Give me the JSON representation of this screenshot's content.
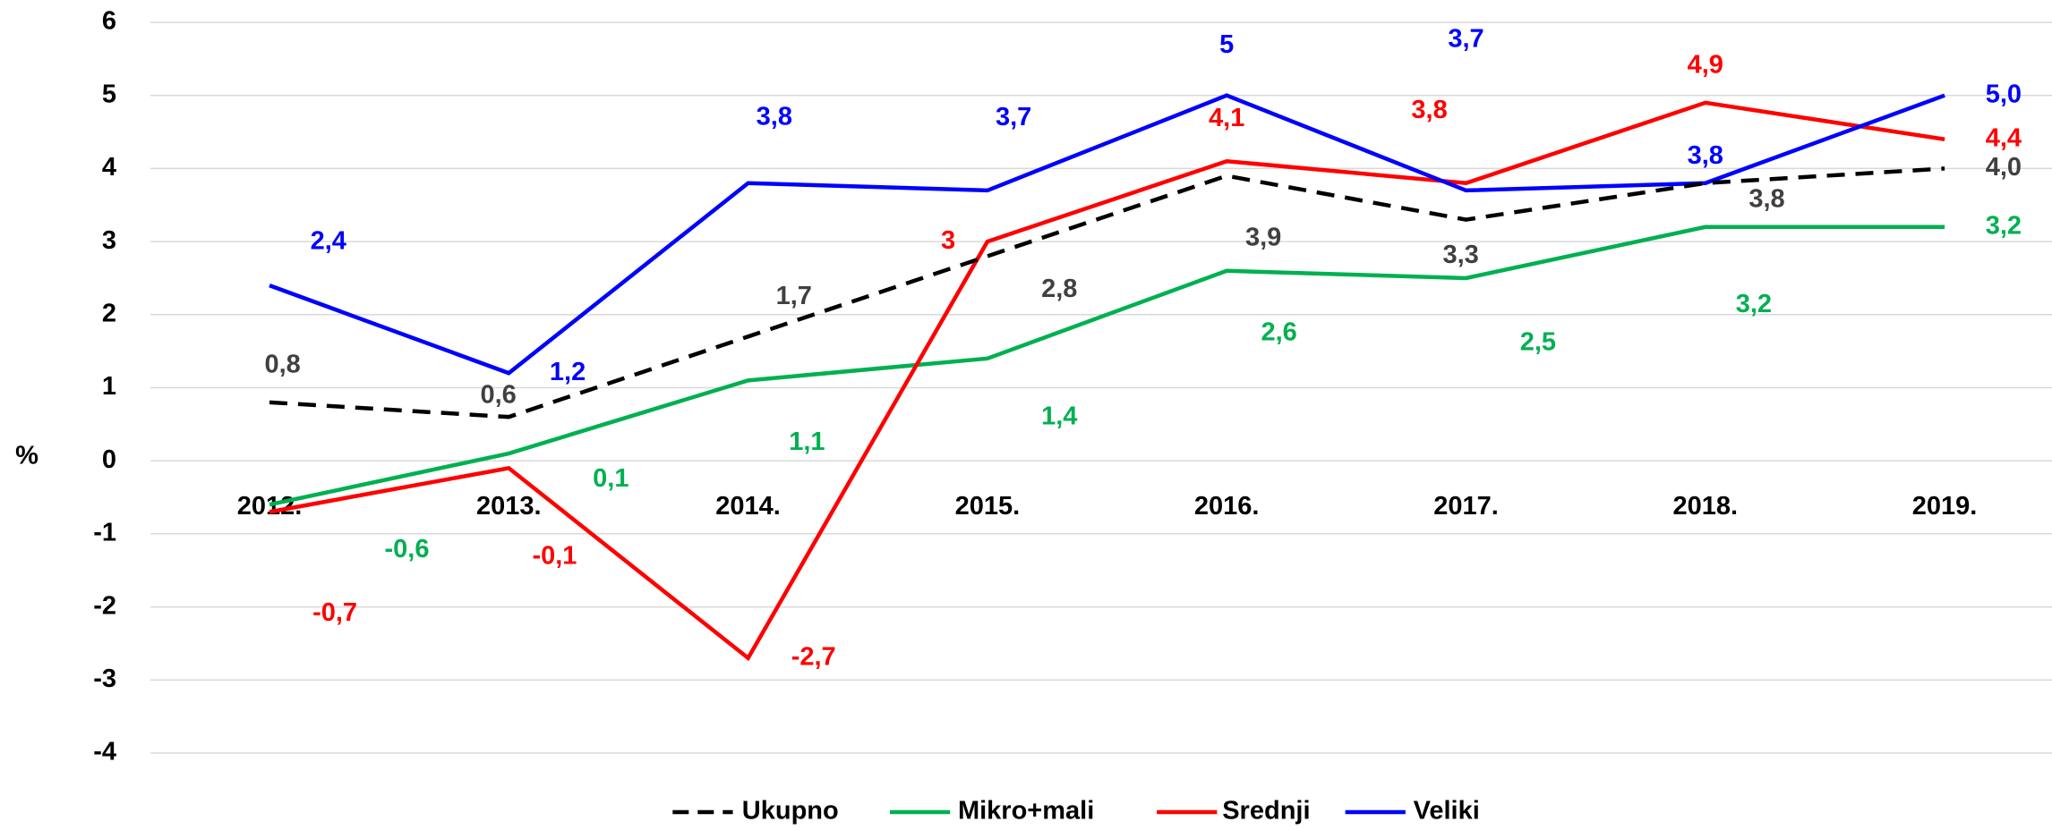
{
  "chart_data": {
    "type": "line",
    "y_label": "%",
    "categories": [
      "2012.",
      "2013.",
      "2014.",
      "2015.",
      "2016.",
      "2017.",
      "2018.",
      "2019."
    ],
    "ylim": [
      -4,
      6
    ],
    "yticks": [
      -4,
      -3,
      -2,
      -1,
      0,
      1,
      2,
      3,
      4,
      5,
      6
    ],
    "grid": true,
    "series": [
      {
        "name": "Ukupno",
        "color": "#000000",
        "dashed": true,
        "values": [
          0.8,
          0.6,
          1.7,
          2.8,
          3.9,
          3.3,
          3.8,
          4.0
        ],
        "value_labels": [
          "0,8",
          "0,6",
          "1,7",
          "2,8",
          "3,9",
          "3,3",
          "3,8",
          "4,0"
        ],
        "label_color": "#404040"
      },
      {
        "name": "Mikro+mali",
        "color": "#00b050",
        "values": [
          -0.6,
          0.1,
          1.1,
          1.4,
          2.6,
          2.5,
          3.2,
          3.2
        ],
        "value_labels": [
          "-0,6",
          "0,1",
          "1,1",
          "1,4",
          "2,6",
          "2,5",
          "3,2",
          "3,2"
        ],
        "label_color": "#00b050"
      },
      {
        "name": "Srednji",
        "color": "#ff0000",
        "values": [
          -0.7,
          -0.1,
          -2.7,
          3,
          4.1,
          3.8,
          4.9,
          4.4
        ],
        "value_labels": [
          "-0,7",
          "-0,1",
          "-2,7",
          "3",
          "4,1",
          "3,8",
          "4,9",
          "4,4"
        ],
        "label_color": "#ff0000"
      },
      {
        "name": "Veliki",
        "color": "#0000ff",
        "values": [
          2.4,
          1.2,
          3.8,
          3.7,
          5,
          3.7,
          3.8,
          5.0
        ],
        "value_labels": [
          "2,4",
          "1,2",
          "3,8",
          "3,7",
          "5",
          "3,7",
          "3,8",
          "5,0"
        ],
        "label_color": "#0000ff"
      }
    ]
  }
}
